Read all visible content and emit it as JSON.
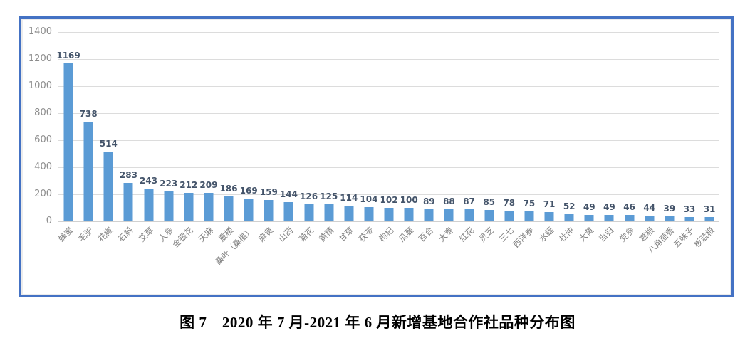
{
  "chart_data": {
    "type": "bar",
    "title": "图 7　2020 年 7 月-2021 年 6 月新增基地合作社品种分布图",
    "categories": [
      "蜂蜜",
      "毛驴",
      "花椒",
      "石斛",
      "艾草",
      "人参",
      "金银花",
      "天麻",
      "重楼",
      "桑叶（桑椹）",
      "麻黄",
      "山药",
      "菊花",
      "黄精",
      "甘草",
      "茯苓",
      "枸杞",
      "瓜蒌",
      "百合",
      "大枣",
      "红花",
      "灵芝",
      "三七",
      "西洋参",
      "水蛭",
      "杜仲",
      "大黄",
      "当归",
      "党参",
      "葛根",
      "八角茴香",
      "五味子",
      "板蓝根"
    ],
    "values": [
      1169,
      738,
      514,
      283,
      243,
      223,
      212,
      209,
      186,
      169,
      159,
      144,
      126,
      125,
      114,
      104,
      102,
      100,
      89,
      88,
      87,
      85,
      78,
      75,
      71,
      52,
      49,
      49,
      46,
      44,
      39,
      33,
      31
    ],
    "xlabel": "",
    "ylabel": "",
    "ylim": [
      0,
      1400
    ],
    "yticks": [
      0,
      200,
      400,
      600,
      800,
      1000,
      1200,
      1400
    ],
    "grid": "horizontal",
    "legend": "none",
    "data_labels": true,
    "category_label_rotation_deg": 45
  },
  "style": {
    "bar_color": "#5B9BD5",
    "chart_border_color": "#4472C4",
    "gridline_color": "#DCDCDC",
    "tick_label_color": "#8C8C8C",
    "data_label_color": "#44546A",
    "category_label_color": "#7F7F7F",
    "caption_color": "#000000"
  }
}
